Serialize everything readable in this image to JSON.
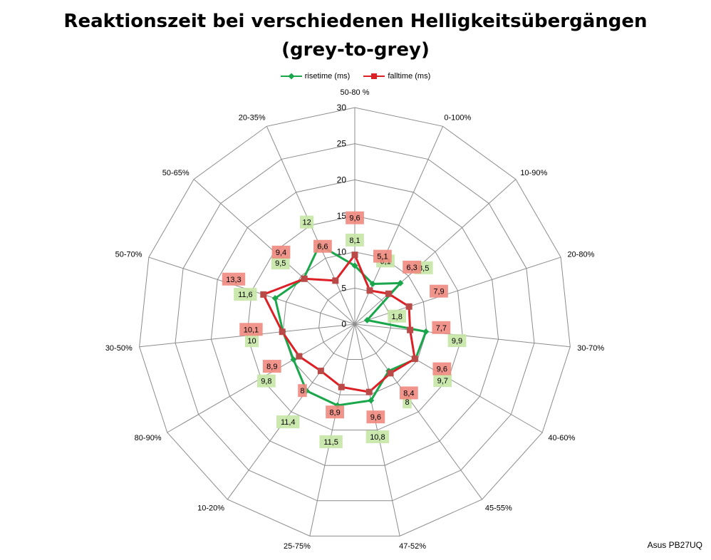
{
  "chart_data": {
    "type": "radar",
    "title": [
      "Reaktionszeit bei verschiedenen Helligkeitsübergängen",
      "(grey-to-grey)"
    ],
    "categories": [
      "50-80 %",
      "0-100%",
      "10-90%",
      "20-80%",
      "30-70%",
      "40-60%",
      "45-55%",
      "47-52%",
      "25-75%",
      "10-20%",
      "80-90%",
      "30-50%",
      "50-70%",
      "50-65%",
      "20-35%"
    ],
    "r_ticks": [
      0,
      5,
      10,
      15,
      20,
      25,
      30
    ],
    "r_range": [
      0,
      30
    ],
    "series": [
      {
        "name": "risetime (ms)",
        "color": "#1aa64b",
        "label_bg": "#c5e5a5",
        "marker": "diamond",
        "values": [
          8.1,
          6.1,
          8.5,
          1.8,
          9.9,
          9.7,
          8.0,
          10.8,
          11.5,
          11.4,
          9.8,
          10.0,
          11.6,
          9.5,
          12.0
        ],
        "labels": [
          "8,1",
          "6,1",
          "8,5",
          "1,8",
          "9,9",
          "9,7",
          "8",
          "10,8",
          "11,5",
          "11,4",
          "9,8",
          "10",
          "11,6",
          "9,5",
          "12"
        ]
      },
      {
        "name": "falltime (ms)",
        "color": "#dd1f26",
        "label_bg": "#f08a80",
        "marker": "square",
        "values": [
          9.6,
          5.1,
          6.3,
          7.9,
          7.7,
          9.6,
          8.4,
          9.6,
          8.9,
          8.0,
          8.9,
          10.1,
          13.3,
          9.4,
          6.6
        ],
        "labels": [
          "9,6",
          "5,1",
          "6,3",
          "7,9",
          "7,7",
          "9,6",
          "8,4",
          "9,6",
          "8,9",
          "8",
          "8,9",
          "10,1",
          "13,3",
          "9,4",
          "6,6"
        ]
      }
    ],
    "legend": "top",
    "grid": true
  },
  "watermark": "Asus PB27UQ"
}
